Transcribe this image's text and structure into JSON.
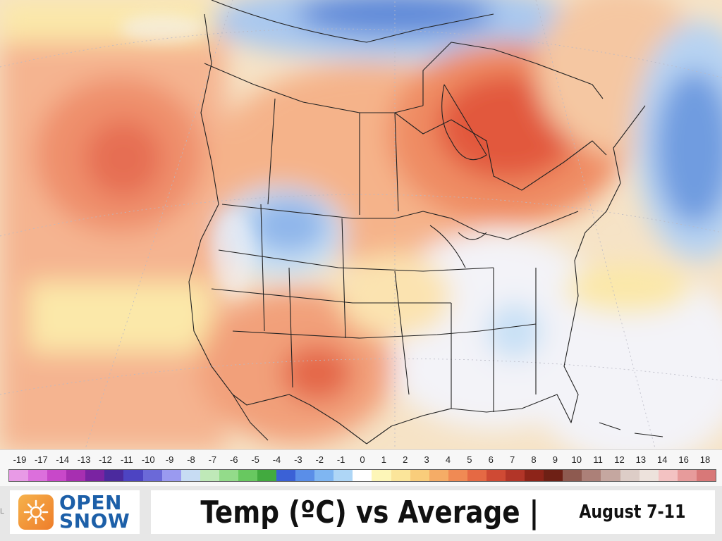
{
  "title": {
    "main": "Temp (ºC) vs Average |",
    "date": "August 7-11"
  },
  "brand": {
    "line1": "OPEN",
    "line2": "SNOW",
    "side_mark": "L"
  },
  "legend": {
    "ticks": [
      "-19",
      "-17",
      "-14",
      "-13",
      "-12",
      "-11",
      "-10",
      "-9",
      "-8",
      "-7",
      "-6",
      "-5",
      "-4",
      "-3",
      "-2",
      "-1",
      "0",
      "1",
      "2",
      "3",
      "4",
      "5",
      "6",
      "7",
      "8",
      "9",
      "10",
      "11",
      "12",
      "13",
      "14",
      "16",
      "18"
    ],
    "colors": [
      "#e89ae6",
      "#dc6fdc",
      "#c848c9",
      "#a72fb1",
      "#7a23a2",
      "#4b2a9e",
      "#4d44c2",
      "#6b69d8",
      "#9a9af0",
      "#c7dcf3",
      "#bfe9b8",
      "#93db8a",
      "#68c860",
      "#42aa3f",
      "#3b61d6",
      "#5a8ee8",
      "#7fb6f2",
      "#aed6f6",
      "#ffffff",
      "#fdf6b8",
      "#fbe59a",
      "#f9cd7b",
      "#f5ac66",
      "#f08a54",
      "#e56944",
      "#cf4a34",
      "#b23528",
      "#8d2419",
      "#6e2015",
      "#8e5a50",
      "#ac8078",
      "#c5a7a0",
      "#ddcdc7",
      "#ede2dc",
      "#f3c2c2",
      "#e79b9b",
      "#d87878"
    ]
  },
  "colors": {
    "warm_strong": "#e35a3c",
    "warm": "#f2a07a",
    "warm_light": "#f8c9a3",
    "yellow": "#fbe8a9",
    "neutral": "#f4f4f8",
    "cool_light": "#c8e0f5",
    "cool": "#8fb6ea",
    "cool_strong": "#5a86d6"
  }
}
